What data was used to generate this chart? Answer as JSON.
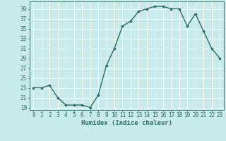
{
  "x": [
    0,
    1,
    2,
    3,
    4,
    5,
    6,
    7,
    8,
    9,
    10,
    11,
    12,
    13,
    14,
    15,
    16,
    17,
    18,
    19,
    20,
    21,
    22,
    23
  ],
  "y": [
    23,
    23,
    23.5,
    21,
    19.5,
    19.5,
    19.5,
    19,
    21.5,
    27.5,
    31,
    35.5,
    36.5,
    38.5,
    39,
    39.5,
    39.5,
    39,
    39,
    35.5,
    38,
    34.5,
    31,
    29
  ],
  "line_color": "#2e6b5e",
  "marker": "D",
  "marker_size": 1.8,
  "bg_color": "#c8eaea",
  "grid_color": "#ffffff",
  "xlabel": "Humidex (Indice chaleur)",
  "yticks": [
    19,
    21,
    23,
    25,
    27,
    29,
    31,
    33,
    35,
    37,
    39
  ],
  "xticks": [
    0,
    1,
    2,
    3,
    4,
    5,
    6,
    7,
    8,
    9,
    10,
    11,
    12,
    13,
    14,
    15,
    16,
    17,
    18,
    19,
    20,
    21,
    22,
    23
  ],
  "xlim": [
    -0.5,
    23.5
  ],
  "ylim": [
    18.5,
    40.5
  ],
  "xlabel_fontsize": 6.5,
  "tick_fontsize": 5.5,
  "linewidth": 1.0
}
